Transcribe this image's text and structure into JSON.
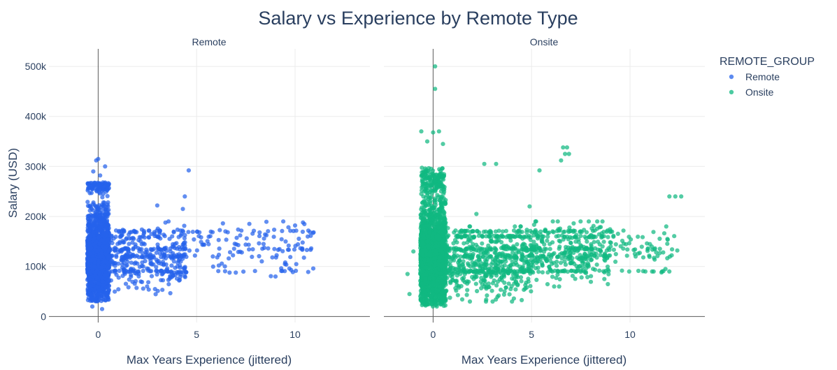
{
  "chart_data": {
    "type": "scatter",
    "title": "Salary vs Experience by Remote Type",
    "ylabel": "Salary (USD)",
    "xlabel": "Max Years Experience (jittered)",
    "xlim": [
      -2.5,
      13.8
    ],
    "ylim": [
      -12000,
      535000
    ],
    "x_ticks": [
      0,
      5,
      10
    ],
    "x_tick_labels": [
      "0",
      "5",
      "10"
    ],
    "y_ticks": [
      0,
      100000,
      200000,
      300000,
      400000,
      500000
    ],
    "y_tick_labels": [
      "0",
      "100k",
      "200k",
      "300k",
      "400k",
      "500k"
    ],
    "grid": true,
    "legend": {
      "title": "REMOTE_GROUP",
      "placement": "top-right",
      "entries": [
        {
          "name": "Remote",
          "color": "#2563eb"
        },
        {
          "name": "Onsite",
          "color": "#10b981"
        }
      ]
    },
    "panels": [
      {
        "name": "Remote",
        "color": "#2563eb",
        "clusters": [
          {
            "x_center": 0,
            "x_spread": 0.55,
            "y_min": 30000,
            "y_max": 230000,
            "y_peak": 120000,
            "count": 1400
          },
          {
            "x_center": 0,
            "x_spread": 0.55,
            "y_min": 228000,
            "y_max": 268000,
            "y_peak": 260000,
            "count": 90
          }
        ],
        "bands": [
          {
            "x_from": 0.5,
            "x_to": 4.5,
            "y_min": 40000,
            "y_max": 190000,
            "count": 420
          },
          {
            "x_from": 4.5,
            "x_to": 11,
            "y_min": 80000,
            "y_max": 195000,
            "count": 130
          }
        ],
        "points": [
          [
            0.0,
            315000
          ],
          [
            -0.1,
            312000
          ],
          [
            0.35,
            300000
          ],
          [
            -0.25,
            290000
          ],
          [
            0.1,
            282000
          ],
          [
            4.6,
            292000
          ],
          [
            4.4,
            240000
          ],
          [
            3.0,
            222000
          ],
          [
            4.3,
            215000
          ],
          [
            8.2,
            168000
          ],
          [
            9.5,
            108000
          ],
          [
            9.8,
            93000
          ],
          [
            10.6,
            133000
          ],
          [
            10.4,
            188000
          ],
          [
            10.0,
            182000
          ],
          [
            9.4,
            190000
          ],
          [
            8.4,
            145000
          ],
          [
            0.2,
            15000
          ],
          [
            -0.3,
            20000
          ]
        ]
      },
      {
        "name": "Onsite",
        "color": "#10b981",
        "clusters": [
          {
            "x_center": 0,
            "x_spread": 0.65,
            "y_min": 20000,
            "y_max": 240000,
            "y_peak": 120000,
            "count": 1900
          },
          {
            "x_center": 0,
            "x_spread": 0.6,
            "y_min": 238000,
            "y_max": 300000,
            "y_peak": 270000,
            "count": 150
          }
        ],
        "bands": [
          {
            "x_from": 0.6,
            "x_to": 5.0,
            "y_min": 30000,
            "y_max": 180000,
            "count": 650
          },
          {
            "x_from": 5.0,
            "x_to": 9.0,
            "y_min": 60000,
            "y_max": 190000,
            "count": 380
          },
          {
            "x_from": 9.0,
            "x_to": 12.3,
            "y_min": 90000,
            "y_max": 180000,
            "count": 70
          }
        ],
        "points": [
          [
            0.1,
            500000
          ],
          [
            0.1,
            455000
          ],
          [
            -0.6,
            370000
          ],
          [
            0.0,
            368000
          ],
          [
            0.3,
            370000
          ],
          [
            -0.3,
            350000
          ],
          [
            0.5,
            345000
          ],
          [
            6.8,
            338000
          ],
          [
            6.6,
            338000
          ],
          [
            6.7,
            325000
          ],
          [
            6.9,
            325000
          ],
          [
            6.5,
            312000
          ],
          [
            5.4,
            292000
          ],
          [
            2.6,
            305000
          ],
          [
            3.2,
            305000
          ],
          [
            12.0,
            240000
          ],
          [
            12.3,
            240000
          ],
          [
            12.6,
            240000
          ],
          [
            11.9,
            155000
          ],
          [
            11.8,
            95000
          ],
          [
            11.2,
            90000
          ],
          [
            11.6,
            88000
          ],
          [
            4.9,
            220000
          ],
          [
            2.2,
            205000
          ],
          [
            -1.3,
            85000
          ],
          [
            -1.2,
            45000
          ],
          [
            -1.0,
            130000
          ],
          [
            12.4,
            132000
          ]
        ]
      }
    ]
  }
}
